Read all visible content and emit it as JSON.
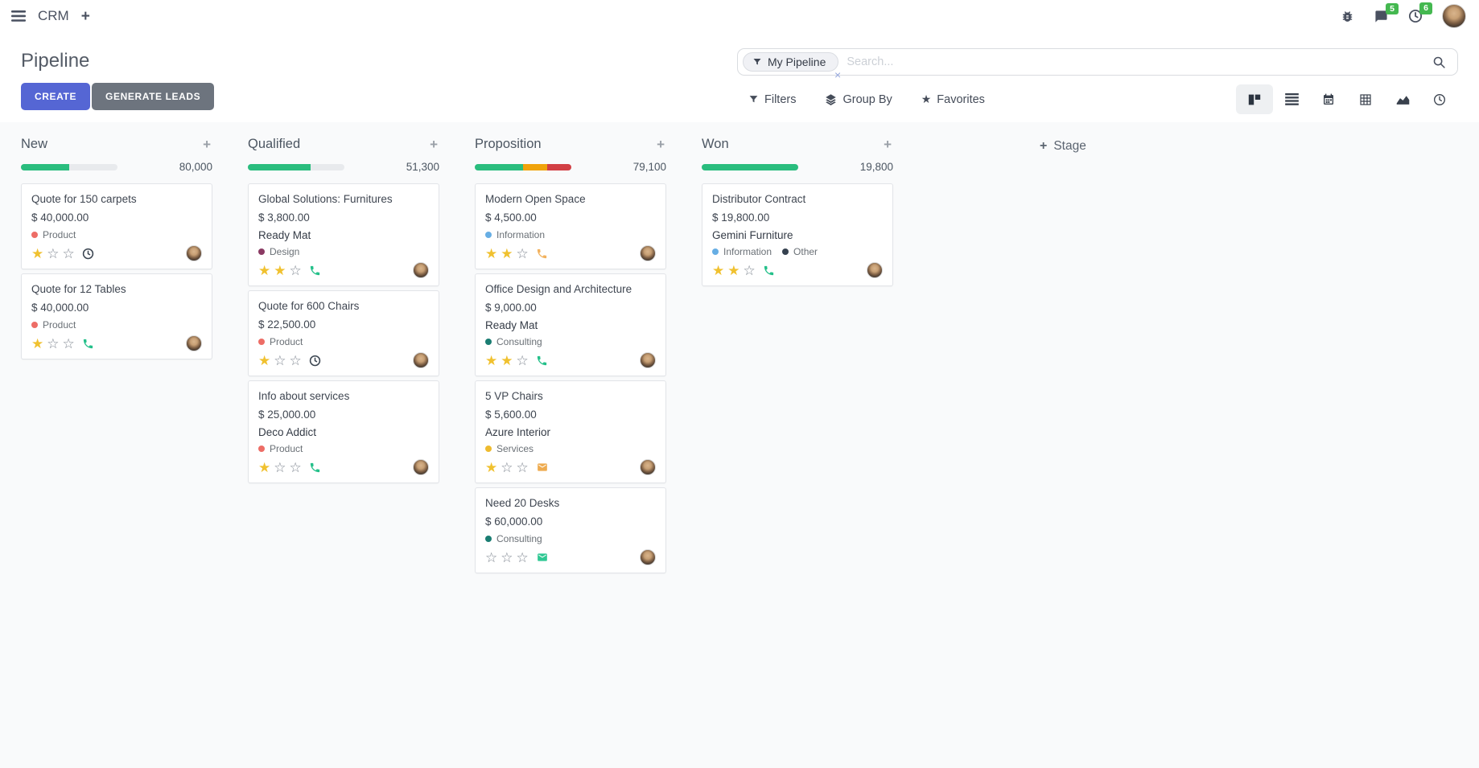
{
  "navbar": {
    "app_name": "CRM",
    "badges": {
      "messages": "5",
      "activities": "6"
    }
  },
  "page": {
    "title": "Pipeline"
  },
  "actions": {
    "create": "CREATE",
    "generate_leads": "GENERATE LEADS"
  },
  "search": {
    "facet_label": "My Pipeline",
    "placeholder": "Search...",
    "remove_facet": "×"
  },
  "toolbar": {
    "filters": "Filters",
    "group_by": "Group By",
    "favorites": "Favorites"
  },
  "view_switcher": [
    "kanban",
    "list",
    "calendar",
    "pivot",
    "graph",
    "activity"
  ],
  "stage_add": {
    "label": "Stage"
  },
  "colors": {
    "primary": "#5566d4",
    "secondary": "#6d747e",
    "badge_green": "#44b850",
    "progress_green": "#2abd7e",
    "progress_orange": "#f0a30b",
    "progress_red": "#d23f44",
    "star_filled": "#f0c12f"
  },
  "board": {
    "columns": [
      {
        "name": "New",
        "total": "80,000",
        "progress": [
          {
            "color": "#2abd7e",
            "pct": 50
          }
        ],
        "cards": [
          {
            "title": "Quote for 150 carpets",
            "amount": "$ 40,000.00",
            "tags": [
              {
                "label": "Product",
                "color": "#ed6d66"
              }
            ],
            "stars": 1,
            "activity": "clock"
          },
          {
            "title": "Quote for 12 Tables",
            "amount": "$ 40,000.00",
            "tags": [
              {
                "label": "Product",
                "color": "#ed6d66"
              }
            ],
            "stars": 1,
            "activity": "phone-green"
          }
        ]
      },
      {
        "name": "Qualified",
        "total": "51,300",
        "progress": [
          {
            "color": "#2abd7e",
            "pct": 65
          }
        ],
        "cards": [
          {
            "title": "Global Solutions: Furnitures",
            "amount": "$ 3,800.00",
            "partner": "Ready Mat",
            "tags": [
              {
                "label": "Design",
                "color": "#8a3a63"
              }
            ],
            "stars": 2,
            "activity": "phone-green"
          },
          {
            "title": "Quote for 600 Chairs",
            "amount": "$ 22,500.00",
            "tags": [
              {
                "label": "Product",
                "color": "#ed6d66"
              }
            ],
            "stars": 1,
            "activity": "clock"
          },
          {
            "title": "Info about services",
            "amount": "$ 25,000.00",
            "partner": "Deco Addict",
            "tags": [
              {
                "label": "Product",
                "color": "#ed6d66"
              }
            ],
            "stars": 1,
            "activity": "phone-green"
          }
        ]
      },
      {
        "name": "Proposition",
        "total": "79,100",
        "progress": [
          {
            "color": "#2abd7e",
            "pct": 50
          },
          {
            "color": "#f0a30b",
            "pct": 25
          },
          {
            "color": "#d23f44",
            "pct": 25
          }
        ],
        "cards": [
          {
            "title": "Modern Open Space",
            "amount": "$ 4,500.00",
            "tags": [
              {
                "label": "Information",
                "color": "#67aee4"
              }
            ],
            "stars": 2,
            "activity": "phone-orange"
          },
          {
            "title": "Office Design and Architecture",
            "amount": "$ 9,000.00",
            "partner": "Ready Mat",
            "tags": [
              {
                "label": "Consulting",
                "color": "#1a7d72"
              }
            ],
            "stars": 2,
            "activity": "phone-green"
          },
          {
            "title": "5 VP Chairs",
            "amount": "$ 5,600.00",
            "partner": "Azure Interior",
            "tags": [
              {
                "label": "Services",
                "color": "#eebb2f"
              }
            ],
            "stars": 1,
            "activity": "mail-orange"
          },
          {
            "title": "Need 20 Desks",
            "amount": "$ 60,000.00",
            "tags": [
              {
                "label": "Consulting",
                "color": "#1a7d72"
              }
            ],
            "stars": 0,
            "activity": "mail-green"
          }
        ]
      },
      {
        "name": "Won",
        "total": "19,800",
        "progress": [
          {
            "color": "#2abd7e",
            "pct": 100
          }
        ],
        "cards": [
          {
            "title": "Distributor Contract",
            "amount": "$ 19,800.00",
            "partner": "Gemini Furniture",
            "tags": [
              {
                "label": "Information",
                "color": "#67aee4"
              },
              {
                "label": "Other",
                "color": "#35414f"
              }
            ],
            "stars": 2,
            "activity": "phone-green"
          }
        ]
      }
    ]
  }
}
